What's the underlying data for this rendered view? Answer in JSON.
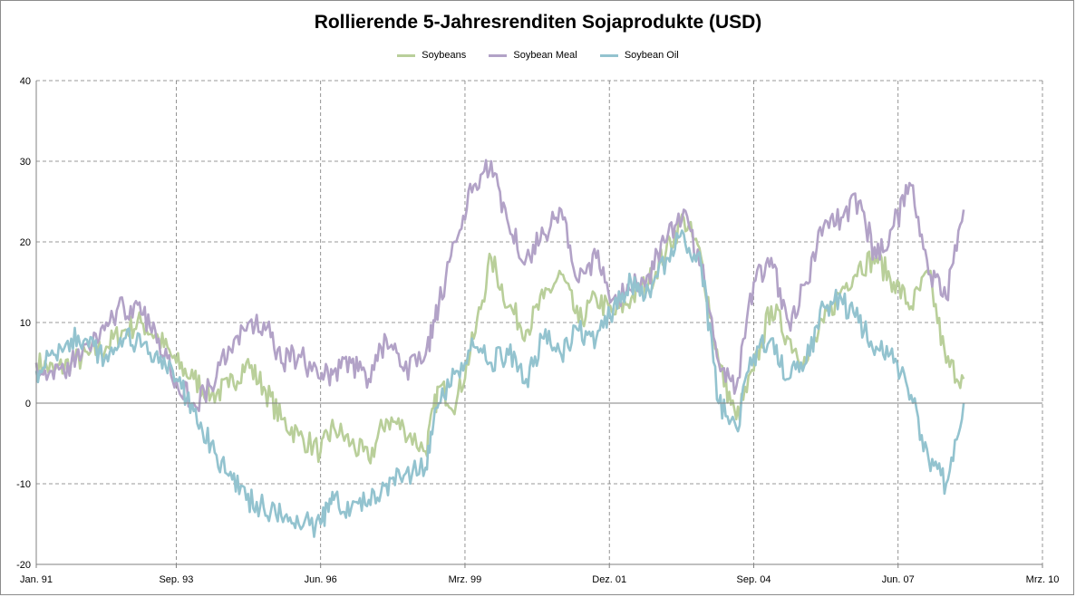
{
  "chart_data": {
    "type": "line",
    "title": "Rollierende 5-Jahresrenditen Sojaprodukte (USD)",
    "xlabel": "",
    "ylabel": "",
    "ylim": [
      -20,
      40
    ],
    "yticks": [
      -20,
      -10,
      0,
      10,
      20,
      30,
      40
    ],
    "xlim": [
      "1991-01",
      "2010-03"
    ],
    "x_tick_labels": [
      "Jan. 91",
      "Sep. 93",
      "Jun. 96",
      "Mrz. 99",
      "Dez. 01",
      "Sep. 04",
      "Jun. 07",
      "Mrz. 10"
    ],
    "x_tick_dates": [
      "1991-01",
      "1993-09",
      "1996-06",
      "1999-03",
      "2001-12",
      "2004-09",
      "2007-06",
      "2010-03"
    ],
    "grid": true,
    "legend_position": "top",
    "x": [
      "1991-01",
      "1991-05",
      "1991-09",
      "1992-01",
      "1992-05",
      "1992-09",
      "1993-01",
      "1993-05",
      "1993-09",
      "1994-01",
      "1994-05",
      "1994-09",
      "1995-01",
      "1995-05",
      "1995-09",
      "1996-01",
      "1996-06",
      "1996-09",
      "1997-01",
      "1997-05",
      "1997-09",
      "1998-01",
      "1998-06",
      "1998-09",
      "1999-01",
      "1999-05",
      "1999-09",
      "2000-01",
      "2000-05",
      "2000-09",
      "2001-01",
      "2001-05",
      "2001-09",
      "2002-01",
      "2002-05",
      "2002-09",
      "2003-01",
      "2003-05",
      "2003-09",
      "2004-01",
      "2004-05",
      "2004-09",
      "2005-01",
      "2005-05",
      "2005-09",
      "2006-01",
      "2006-05",
      "2006-09",
      "2007-01",
      "2007-05",
      "2007-09",
      "2008-01",
      "2008-05",
      "2008-09"
    ],
    "series": [
      {
        "name": "Soybeans",
        "color": "#b9cf9a",
        "values": [
          5,
          4,
          5,
          6,
          7,
          9,
          10,
          8,
          5,
          3,
          1,
          2,
          5,
          2,
          -2,
          -4,
          -6,
          -3,
          -5,
          -7,
          -2,
          -3,
          -6,
          2,
          0,
          8,
          18,
          12,
          9,
          13,
          16,
          10,
          13,
          11,
          13,
          15,
          19,
          23,
          18,
          5,
          -2,
          4,
          12,
          8,
          5,
          10,
          14,
          17,
          18,
          15,
          12,
          16,
          5,
          3
        ]
      },
      {
        "name": "Soybean Meal",
        "color": "#b2a2c7",
        "values": [
          5,
          3,
          5,
          7,
          10,
          12,
          11,
          8,
          3,
          0,
          2,
          7,
          9,
          10,
          5,
          6,
          3,
          4,
          5,
          3,
          8,
          4,
          6,
          12,
          20,
          27,
          30,
          22,
          18,
          21,
          24,
          15,
          18,
          13,
          14,
          16,
          20,
          24,
          17,
          5,
          2,
          15,
          18,
          10,
          15,
          22,
          23,
          25,
          18,
          22,
          27,
          16,
          13,
          24
        ]
      },
      {
        "name": "Soybean Oil",
        "color": "#93c3cf",
        "values": [
          4,
          6,
          8,
          7,
          6,
          8,
          7,
          5,
          3,
          -1,
          -5,
          -9,
          -12,
          -13,
          -14,
          -15,
          -15,
          -12,
          -13,
          -12,
          -10,
          -9,
          -8,
          0,
          4,
          7,
          5,
          6,
          3,
          8,
          6,
          9,
          8,
          12,
          15,
          14,
          18,
          21,
          17,
          0,
          -3,
          6,
          8,
          3,
          5,
          12,
          13,
          10,
          7,
          5,
          1,
          -7,
          -10,
          0
        ]
      }
    ]
  }
}
